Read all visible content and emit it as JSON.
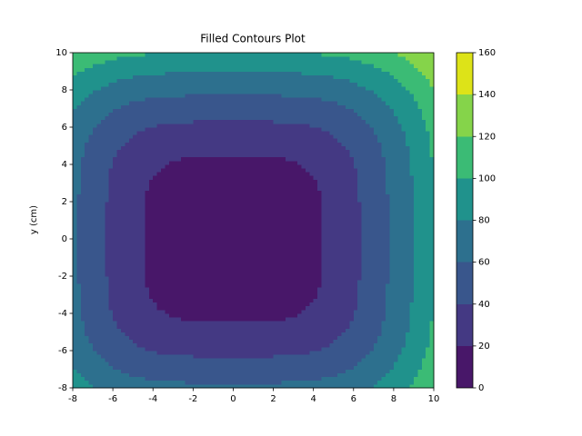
{
  "chart_data": {
    "type": "contourf",
    "title": "Filled Contours Plot",
    "ylabel": "y (cm)",
    "x": [
      -8,
      -7,
      -6,
      -5,
      -4,
      -3,
      -2,
      -1,
      0,
      1,
      2,
      3,
      4,
      5,
      6,
      7,
      8,
      9,
      10
    ],
    "y": [
      -8,
      -7,
      -6,
      -5,
      -4,
      -3,
      -2,
      -1,
      0,
      1,
      2,
      3,
      4,
      5,
      6,
      7,
      8,
      9,
      10
    ],
    "z": [
      [
        91,
        81,
        73,
        69,
        66,
        65,
        64,
        64,
        64,
        64,
        64,
        65,
        66,
        69,
        73,
        81,
        91,
        103,
        119
      ],
      [
        81,
        69,
        61,
        55,
        52,
        50,
        49,
        49,
        49,
        49,
        49,
        50,
        52,
        55,
        61,
        69,
        81,
        95,
        111
      ],
      [
        73,
        61,
        51,
        44,
        39,
        37,
        36,
        36,
        36,
        36,
        36,
        37,
        39,
        44,
        51,
        61,
        73,
        89,
        106
      ],
      [
        69,
        55,
        44,
        35,
        30,
        27,
        25,
        25,
        25,
        25,
        25,
        27,
        30,
        35,
        44,
        55,
        69,
        85,
        103
      ],
      [
        66,
        52,
        39,
        30,
        23,
        18,
        16,
        16,
        16,
        16,
        16,
        18,
        23,
        30,
        39,
        52,
        66,
        83,
        101
      ],
      [
        65,
        50,
        37,
        27,
        18,
        13,
        10,
        9,
        9,
        9,
        10,
        13,
        18,
        27,
        37,
        50,
        65,
        81,
        100
      ],
      [
        64,
        49,
        36,
        25,
        16,
        10,
        6,
        4,
        4,
        4,
        6,
        10,
        16,
        25,
        36,
        49,
        64,
        81,
        100
      ],
      [
        64,
        49,
        36,
        25,
        16,
        9,
        4,
        1,
        1,
        1,
        4,
        9,
        16,
        25,
        36,
        49,
        64,
        81,
        100
      ],
      [
        64,
        49,
        36,
        25,
        16,
        9,
        4,
        1,
        0,
        1,
        4,
        9,
        16,
        25,
        36,
        49,
        64,
        81,
        100
      ],
      [
        64,
        49,
        36,
        25,
        16,
        9,
        4,
        1,
        1,
        1,
        4,
        9,
        16,
        25,
        36,
        49,
        64,
        81,
        100
      ],
      [
        64,
        49,
        36,
        25,
        16,
        10,
        6,
        4,
        4,
        4,
        6,
        10,
        16,
        25,
        36,
        49,
        64,
        81,
        100
      ],
      [
        65,
        50,
        37,
        27,
        18,
        13,
        10,
        9,
        9,
        9,
        10,
        13,
        18,
        27,
        37,
        50,
        65,
        81,
        100
      ],
      [
        66,
        52,
        39,
        30,
        23,
        18,
        16,
        16,
        16,
        16,
        16,
        18,
        23,
        30,
        39,
        52,
        66,
        83,
        101
      ],
      [
        69,
        55,
        44,
        35,
        30,
        27,
        25,
        25,
        25,
        25,
        25,
        27,
        30,
        35,
        44,
        55,
        69,
        85,
        103
      ],
      [
        73,
        61,
        51,
        44,
        39,
        37,
        36,
        36,
        36,
        36,
        36,
        37,
        39,
        44,
        51,
        61,
        73,
        89,
        106
      ],
      [
        81,
        69,
        61,
        55,
        52,
        50,
        49,
        49,
        49,
        49,
        49,
        50,
        52,
        55,
        61,
        69,
        81,
        95,
        111
      ],
      [
        91,
        81,
        73,
        69,
        66,
        65,
        64,
        64,
        64,
        64,
        64,
        65,
        66,
        69,
        73,
        81,
        91,
        103,
        119
      ],
      [
        103,
        95,
        89,
        85,
        83,
        81,
        81,
        81,
        81,
        81,
        81,
        81,
        83,
        85,
        89,
        95,
        103,
        115,
        129
      ],
      [
        119,
        111,
        106,
        103,
        101,
        100,
        100,
        100,
        100,
        100,
        100,
        100,
        101,
        103,
        106,
        111,
        119,
        129,
        141
      ]
    ],
    "levels": [
      0,
      20,
      40,
      60,
      80,
      100,
      120,
      140,
      160
    ],
    "colors": [
      "#481769",
      "#443983",
      "#39568c",
      "#2d708e",
      "#20928c",
      "#3bbb75",
      "#85d44a",
      "#dde318"
    ],
    "xlim": [
      -8,
      10
    ],
    "ylim": [
      -8,
      10
    ],
    "xticks": [
      -8,
      -6,
      -4,
      -2,
      0,
      2,
      4,
      6,
      8,
      10
    ],
    "yticks": [
      -8,
      -6,
      -4,
      -2,
      0,
      2,
      4,
      6,
      8,
      10
    ]
  }
}
